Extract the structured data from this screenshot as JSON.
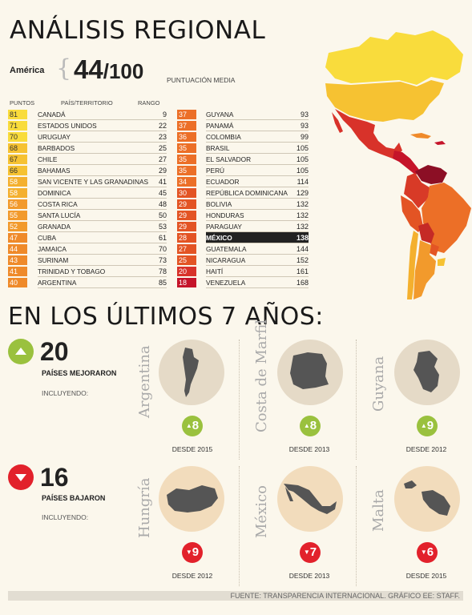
{
  "title": "ANÁLISIS REGIONAL",
  "region": "América",
  "score": {
    "value": "44",
    "denominator": "/100",
    "label": "PUNTUACIÓN MEDIA"
  },
  "headers": {
    "points": "PUNTOS",
    "country": "PAÍS/TERRITORIO",
    "rank": "RANGO"
  },
  "table_left": [
    {
      "points": "81",
      "name": "Canadá",
      "rank": "9",
      "color": "#f9dc3c"
    },
    {
      "points": "71",
      "name": "Estados Unidos",
      "rank": "22",
      "color": "#f9dc3c"
    },
    {
      "points": "70",
      "name": "Uruguay",
      "rank": "23",
      "color": "#f9dc3c"
    },
    {
      "points": "68",
      "name": "Barbados",
      "rank": "25",
      "color": "#f6c232"
    },
    {
      "points": "67",
      "name": "Chile",
      "rank": "27",
      "color": "#f6c232"
    },
    {
      "points": "66",
      "name": "Bahamas",
      "rank": "29",
      "color": "#f6c232"
    },
    {
      "points": "58",
      "name": "San Vicente y las Granadinas",
      "rank": "41",
      "color": "#f4b02e"
    },
    {
      "points": "58",
      "name": "Dominica",
      "rank": "45",
      "color": "#f4b02e"
    },
    {
      "points": "56",
      "name": "Costa Rica",
      "rank": "48",
      "color": "#f29a2c"
    },
    {
      "points": "55",
      "name": "Santa Lucía",
      "rank": "50",
      "color": "#f29a2c"
    },
    {
      "points": "52",
      "name": "Granada",
      "rank": "53",
      "color": "#f29a2c"
    },
    {
      "points": "47",
      "name": "Cuba",
      "rank": "61",
      "color": "#ef8a2a"
    },
    {
      "points": "44",
      "name": "Jamaica",
      "rank": "70",
      "color": "#ef8a2a"
    },
    {
      "points": "43",
      "name": "Surinam",
      "rank": "73",
      "color": "#ef8a2a"
    },
    {
      "points": "41",
      "name": "Trinidad y Tobago",
      "rank": "78",
      "color": "#ef8a2a"
    },
    {
      "points": "40",
      "name": "Argentina",
      "rank": "85",
      "color": "#ef8a2a"
    }
  ],
  "table_right": [
    {
      "points": "37",
      "name": "Guyana",
      "rank": "93",
      "color": "#ec6f27"
    },
    {
      "points": "37",
      "name": "Panamá",
      "rank": "93",
      "color": "#ec6f27"
    },
    {
      "points": "36",
      "name": "Colombia",
      "rank": "99",
      "color": "#ec6f27"
    },
    {
      "points": "35",
      "name": "Brasil",
      "rank": "105",
      "color": "#ec6f27"
    },
    {
      "points": "35",
      "name": "El Salvador",
      "rank": "105",
      "color": "#ec6f27"
    },
    {
      "points": "35",
      "name": "Perú",
      "rank": "105",
      "color": "#ec6f27"
    },
    {
      "points": "34",
      "name": "Ecuador",
      "rank": "114",
      "color": "#ec6f27"
    },
    {
      "points": "30",
      "name": "República Dominicana",
      "rank": "129",
      "color": "#e35424"
    },
    {
      "points": "29",
      "name": "Bolivia",
      "rank": "132",
      "color": "#e35424"
    },
    {
      "points": "29",
      "name": "Honduras",
      "rank": "132",
      "color": "#e35424"
    },
    {
      "points": "29",
      "name": "Paraguay",
      "rank": "132",
      "color": "#e35424"
    },
    {
      "points": "28",
      "name": "México",
      "rank": "138",
      "color": "#e35424",
      "highlight": true
    },
    {
      "points": "27",
      "name": "Guatemala",
      "rank": "144",
      "color": "#e35424"
    },
    {
      "points": "25",
      "name": "Nicaragua",
      "rank": "152",
      "color": "#e35424"
    },
    {
      "points": "20",
      "name": "Haití",
      "rank": "161",
      "color": "#d8322a"
    },
    {
      "points": "18",
      "name": "Venezuela",
      "rank": "168",
      "color": "#c5142a"
    }
  ],
  "section2_title": "EN LOS ÚLTIMOS 7 AÑOS:",
  "improved": {
    "count": "20",
    "label": "PAÍSES MEJORARON",
    "including": "INCLUYENDO:",
    "icon": "up-triangle-icon",
    "color": "#9ac13e",
    "countries": [
      {
        "name": "Argentina",
        "change": "8",
        "since": "DESDE 2015",
        "map_icon": "argentina-map-icon"
      },
      {
        "name": "Costa de Marfil",
        "change": "8",
        "since": "DESDE 2013",
        "map_icon": "ivory-coast-map-icon"
      },
      {
        "name": "Guyana",
        "change": "9",
        "since": "DESDE 2012",
        "map_icon": "guyana-map-icon"
      }
    ]
  },
  "declined": {
    "count": "16",
    "label": "PAÍSES BAJARON",
    "including": "INCLUYENDO:",
    "icon": "down-triangle-icon",
    "color": "#e2212b",
    "countries": [
      {
        "name": "Hungría",
        "change": "9",
        "since": "DESDE 2012",
        "map_icon": "hungary-map-icon"
      },
      {
        "name": "México",
        "change": "7",
        "since": "DESDE 2013",
        "map_icon": "mexico-map-icon"
      },
      {
        "name": "Malta",
        "change": "6",
        "since": "DESDE 2015",
        "map_icon": "malta-map-icon"
      }
    ]
  },
  "source": "FUENTE: TRANSPARENCIA INTERNACIONAL. GRÁFICO EE: STAFF."
}
